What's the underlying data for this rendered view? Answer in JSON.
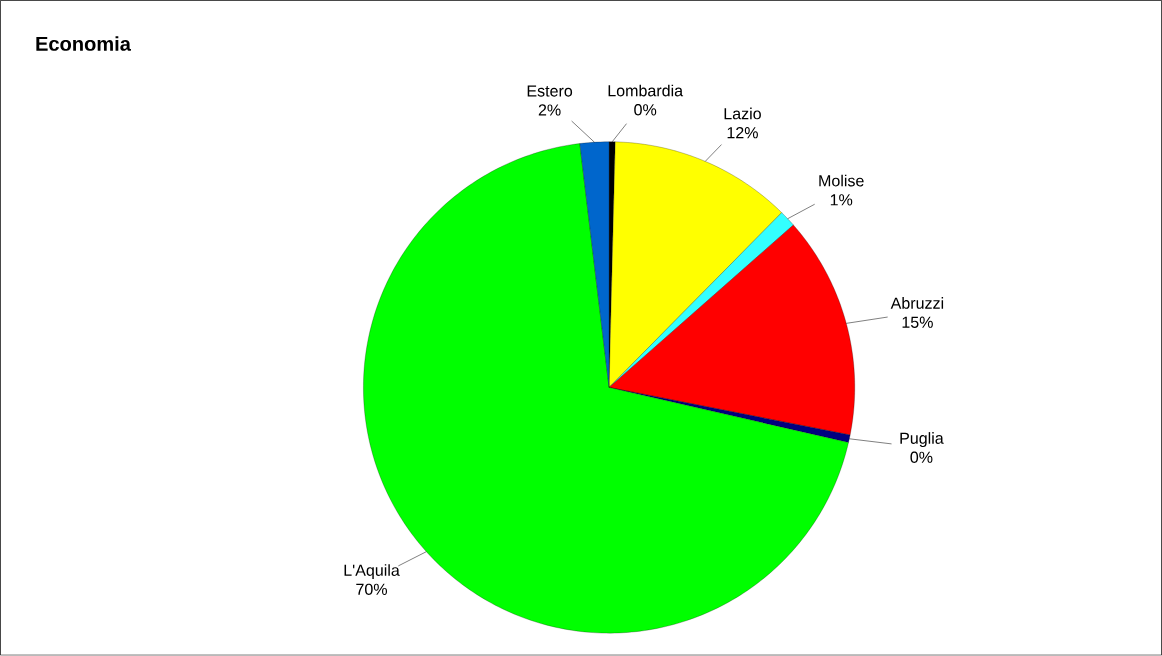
{
  "chart_data": {
    "type": "pie",
    "title": "Economia",
    "categories": [
      "Lombardia",
      "Lazio",
      "Molise",
      "Abruzzi",
      "Puglia",
      "L'Aquila",
      "Estero"
    ],
    "values": [
      0.4,
      12.0,
      1.1,
      14.6,
      0.5,
      69.5,
      1.9
    ],
    "value_labels": [
      "0%",
      "12%",
      "1%",
      "15%",
      "0%",
      "70%",
      "2%"
    ],
    "colors": [
      "#000000",
      "#ffff00",
      "#33ffff",
      "#ff0000",
      "#000080",
      "#00ff00",
      "#0066cc"
    ]
  }
}
